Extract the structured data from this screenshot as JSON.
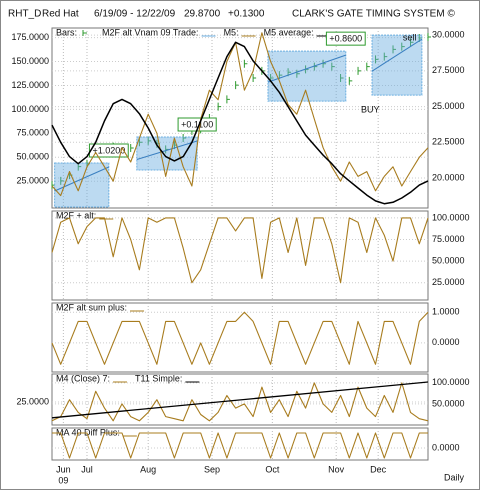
{
  "header": {
    "symbol": "RHT_D",
    "name": "Red Hat",
    "range": "6/19/09 - 12/22/09",
    "last": "29.8700",
    "change": "+0.1300",
    "system": "CLARK'S GATE TIMING SYSTEM ©"
  },
  "x_axis": {
    "xlim": [
      0,
      43
    ],
    "xticks": [
      {
        "value": 1.3,
        "label": "Jun"
      },
      {
        "value": 4,
        "label": "Jul"
      },
      {
        "value": 11,
        "label": "Aug"
      },
      {
        "value": 18.3,
        "label": "Sep"
      },
      {
        "value": 25.2,
        "label": "Oct"
      },
      {
        "value": 32.5,
        "label": "Nov"
      },
      {
        "value": 37.3,
        "label": "Dec"
      }
    ],
    "year": "09",
    "frequency": "Daily"
  },
  "chart_data": [
    {
      "type": "line",
      "grid": true,
      "ylim": [
        -3,
        185
      ],
      "yticks": [
        {
          "value": 25,
          "label": "25.0000"
        },
        {
          "value": 50,
          "label": "50.0000"
        },
        {
          "value": 75,
          "label": "75.0000"
        },
        {
          "value": 100,
          "label": "100.0000"
        },
        {
          "value": 125,
          "label": "125.0000"
        },
        {
          "value": 150,
          "label": "150.0000"
        },
        {
          "value": 175,
          "label": "175.0000"
        }
      ],
      "y2lim": [
        17.9,
        30.5
      ],
      "y2ticks": [
        {
          "value": 20,
          "label": "20.0000"
        },
        {
          "value": 22.5,
          "label": "22.5000"
        },
        {
          "value": 25,
          "label": "25.0000"
        },
        {
          "value": 27.5,
          "label": "27.5000"
        },
        {
          "value": 30,
          "label": "30.0000"
        }
      ],
      "series": [
        {
          "name": "Bars:",
          "style": "bars",
          "color": "#2e9a2e",
          "axis": "y2",
          "values": [
            19.5,
            19.8,
            20.2,
            20.8,
            21.0,
            21.8,
            22.0,
            22.2,
            22.0,
            22.1,
            22.5,
            22.6,
            22.4,
            22.0,
            22.3,
            22.8,
            23.3,
            23.4,
            24.2,
            25.0,
            25.5,
            26.5,
            28.0,
            27.0,
            27.5,
            27.0,
            27.2,
            27.4,
            27.3,
            27.6,
            27.8,
            28.0,
            27.8,
            27.0,
            26.8,
            27.5,
            27.8,
            28.3,
            28.5,
            29.0,
            29.2,
            29.5,
            29.8,
            29.87
          ]
        },
        {
          "name": "M2F alt Vnam 09 Trade:",
          "style": "trades",
          "color": "#6aaee0",
          "axis": "y2",
          "boxes": [
            {
              "x": [
                0.3,
                6.5
              ],
              "y": [
                17.97,
                21.05
              ],
              "label": "+1.0200"
            },
            {
              "x": [
                9.7,
                16.6
              ],
              "y": [
                20.56,
                22.87
              ],
              "label": "+0.1100"
            },
            {
              "x": [
                24.7,
                33.6
              ],
              "y": [
                25.38,
                28.88
              ],
              "label": "+0.8600"
            },
            {
              "x": [
                36.6,
                42.3
              ],
              "y": [
                25.8,
                30.0
              ]
            }
          ]
        },
        {
          "name": "M5:",
          "style": "line",
          "color": "#a87c1e",
          "values": [
            20,
            10,
            35,
            15,
            40,
            55,
            40,
            25,
            60,
            45,
            70,
            95,
            75,
            30,
            70,
            40,
            20,
            90,
            120,
            110,
            150,
            170,
            120,
            140,
            180,
            150,
            130,
            105,
            95,
            120,
            90,
            60,
            40,
            25,
            45,
            30,
            35,
            15,
            30,
            40,
            20,
            35,
            50,
            60
          ]
        },
        {
          "name": "M5 average:",
          "style": "line",
          "color": "#000000",
          "axis": "y2",
          "width": 1.5,
          "values": [
            23.7,
            22.5,
            21.5,
            21.0,
            21.5,
            22.5,
            24,
            25.2,
            25.5,
            25.2,
            24.5,
            23.5,
            22.3,
            21.5,
            21.2,
            21.5,
            22.5,
            24,
            25.5,
            27,
            28.5,
            29.5,
            29.2,
            28.2,
            27.5,
            26.8,
            26,
            25,
            24,
            23,
            22.3,
            21.6,
            21,
            20.3,
            19.8,
            19.3,
            18.8,
            18.4,
            18.2,
            18.3,
            18.6,
            19,
            19.5,
            19.8
          ]
        }
      ],
      "annotations": [
        {
          "text": "BUY",
          "x": 36.4,
          "y": 24.75
        },
        {
          "text": "sell",
          "x": 40.9,
          "y": 29.8
        }
      ]
    },
    {
      "type": "line",
      "grid": true,
      "y2lim": [
        5,
        108
      ],
      "y2ticks": [
        {
          "value": 25,
          "label": "25.0000"
        },
        {
          "value": 50,
          "label": "50.0000"
        },
        {
          "value": 75,
          "label": "75.0000"
        },
        {
          "value": 100,
          "label": "100.0000"
        }
      ],
      "series": [
        {
          "name": "M2F + alt:",
          "style": "line",
          "color": "#a87c1e",
          "axis": "y2",
          "values": [
            60,
            95,
            100,
            70,
            90,
            100,
            100,
            55,
            100,
            75,
            40,
            100,
            95,
            100,
            100,
            65,
            25,
            40,
            70,
            100,
            100,
            85,
            100,
            100,
            30,
            95,
            100,
            60,
            100,
            45,
            100,
            100,
            70,
            25,
            100,
            95,
            60,
            100,
            80,
            50,
            100,
            100,
            70,
            100
          ]
        }
      ]
    },
    {
      "type": "line",
      "grid": true,
      "y2lim": [
        -0.95,
        1.3
      ],
      "y2ticks": [
        {
          "value": 0,
          "label": "0.0000"
        },
        {
          "value": 1,
          "label": "1.0000"
        }
      ],
      "series": [
        {
          "name": "M2F alt sum plus:",
          "style": "line",
          "color": "#a87c1e",
          "axis": "y2",
          "values": [
            0,
            -0.7,
            0,
            0.7,
            0.7,
            0,
            -0.7,
            0,
            0.7,
            0.7,
            0.7,
            0,
            -0.7,
            0.7,
            0.7,
            0,
            -0.7,
            0,
            -0.7,
            0,
            0.7,
            0.7,
            1,
            0.7,
            0,
            -0.7,
            0.7,
            0.7,
            0,
            -0.7,
            0,
            0.7,
            0.7,
            0,
            -0.7,
            0.7,
            0,
            -0.7,
            0.7,
            0.7,
            0,
            -0.7,
            0.7,
            1
          ]
        }
      ]
    },
    {
      "type": "line",
      "grid": true,
      "ylim": [
        2,
        53
      ],
      "yticks": [
        {
          "value": 25,
          "label": "25.0000"
        }
      ],
      "y2lim": [
        0,
        121
      ],
      "y2ticks": [
        {
          "value": 50,
          "label": "50.0000"
        },
        {
          "value": 100,
          "label": "100.0000"
        }
      ],
      "series": [
        {
          "name": "M4 (Close) 7:",
          "style": "line",
          "color": "#a87c1e",
          "axis": "y2",
          "values": [
            10,
            20,
            60,
            30,
            15,
            80,
            40,
            10,
            50,
            20,
            10,
            30,
            60,
            20,
            15,
            10,
            60,
            25,
            10,
            30,
            70,
            40,
            50,
            20,
            90,
            30,
            60,
            20,
            80,
            40,
            100,
            50,
            30,
            70,
            20,
            90,
            40,
            20,
            70,
            30,
            100,
            30,
            15,
            10
          ]
        },
        {
          "name": "T11 Simple:",
          "style": "line",
          "color": "#000000",
          "axis": "y2",
          "width": 1.3,
          "x": [
            0,
            43
          ],
          "values": [
            17,
            102
          ]
        }
      ]
    },
    {
      "type": "line",
      "grid": true,
      "y2lim": [
        -0.6,
        1.0
      ],
      "y2ticks": [
        {
          "value": 0,
          "label": "0.0000"
        }
      ],
      "series": [
        {
          "name": "MA 40 Diff Plus:",
          "style": "line",
          "color": "#a87c1e",
          "axis": "y2",
          "values": [
            0.75,
            0.75,
            -0.5,
            0.75,
            0.75,
            -0.5,
            0.75,
            0.75,
            0.75,
            -0.5,
            0.75,
            0.75,
            0.75,
            0.75,
            -0.5,
            0.75,
            0.75,
            0.75,
            -0.5,
            0.75,
            -0.5,
            0.75,
            0.75,
            0.75,
            0.75,
            -0.5,
            0.75,
            -0.5,
            0.75,
            0.75,
            -0.5,
            0.75,
            0.75,
            0.75,
            -0.5,
            0.75,
            -0.5,
            0.75,
            -0.5,
            0.75,
            0.75,
            -0.5,
            0.75,
            0.75
          ]
        }
      ]
    }
  ]
}
